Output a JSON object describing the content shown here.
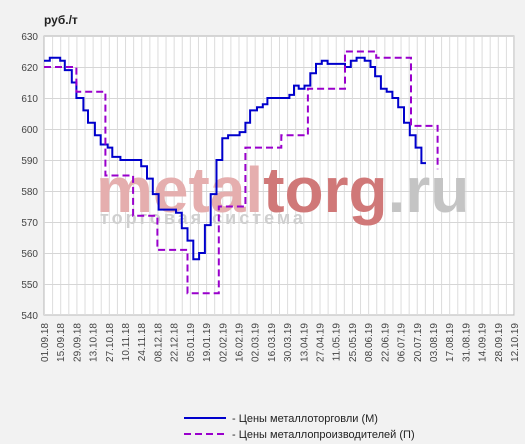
{
  "chart_data": {
    "type": "line",
    "ylabel": "руб./т",
    "ylim": [
      540,
      630
    ],
    "yticks": [
      540,
      550,
      560,
      570,
      580,
      590,
      600,
      610,
      620,
      630
    ],
    "x_labels": [
      "01.09.18",
      "15.09.18",
      "29.09.18",
      "13.10.18",
      "27.10.18",
      "10.11.18",
      "24.11.18",
      "08.12.18",
      "22.12.18",
      "05.01.19",
      "19.01.19",
      "02.02.19",
      "16.02.19",
      "02.03.19",
      "16.03.19",
      "30.03.19",
      "13.04.19",
      "27.04.19",
      "11.05.19",
      "25.05.19",
      "08.06.19",
      "22.06.19",
      "06.07.19",
      "20.07.19",
      "03.08.19",
      "17.08.19",
      "31.08.19",
      "14.09.19",
      "28.09.19",
      "12.10.19"
    ],
    "x_range_days": [
      0,
      406
    ],
    "grid": true,
    "legend_position": "bottom",
    "series": [
      {
        "name": "- Цены металлоторговли (М)",
        "color": "#0000cc",
        "style": "solid",
        "points": [
          [
            0,
            622
          ],
          [
            5,
            623
          ],
          [
            14,
            622
          ],
          [
            18,
            619
          ],
          [
            24,
            615
          ],
          [
            28,
            610
          ],
          [
            34,
            606
          ],
          [
            38,
            602
          ],
          [
            44,
            598
          ],
          [
            49,
            595
          ],
          [
            55,
            594
          ],
          [
            59,
            591
          ],
          [
            66,
            590
          ],
          [
            80,
            590
          ],
          [
            84,
            588
          ],
          [
            89,
            584
          ],
          [
            94,
            579
          ],
          [
            99,
            574
          ],
          [
            114,
            573
          ],
          [
            119,
            568
          ],
          [
            124,
            564
          ],
          [
            129,
            558
          ],
          [
            134,
            560
          ],
          [
            139,
            569
          ],
          [
            144,
            579
          ],
          [
            149,
            590
          ],
          [
            154,
            597
          ],
          [
            159,
            598
          ],
          [
            169,
            599
          ],
          [
            174,
            602
          ],
          [
            178,
            606
          ],
          [
            184,
            607
          ],
          [
            189,
            608
          ],
          [
            193,
            610
          ],
          [
            212,
            611
          ],
          [
            216,
            614
          ],
          [
            220,
            613
          ],
          [
            225,
            614
          ],
          [
            230,
            618
          ],
          [
            235,
            621
          ],
          [
            240,
            622
          ],
          [
            245,
            621
          ],
          [
            260,
            620
          ],
          [
            265,
            622
          ],
          [
            270,
            623
          ],
          [
            277,
            622
          ],
          [
            282,
            620
          ],
          [
            286,
            617
          ],
          [
            291,
            613
          ],
          [
            296,
            612
          ],
          [
            301,
            610
          ],
          [
            306,
            607
          ],
          [
            311,
            602
          ],
          [
            316,
            598
          ],
          [
            321,
            594
          ],
          [
            326,
            589
          ],
          [
            330,
            589
          ]
        ]
      },
      {
        "name": "- Цены металлопроизводителей (П)",
        "color": "#9900cc",
        "style": "dashed",
        "points": [
          [
            0,
            620
          ],
          [
            24,
            620
          ],
          [
            28,
            612
          ],
          [
            49,
            612
          ],
          [
            53,
            585
          ],
          [
            73,
            585
          ],
          [
            77,
            572
          ],
          [
            94,
            572
          ],
          [
            98,
            561
          ],
          [
            120,
            561
          ],
          [
            124,
            547
          ],
          [
            147,
            547
          ],
          [
            151,
            575
          ],
          [
            170,
            575
          ],
          [
            174,
            592
          ],
          [
            174,
            594
          ],
          [
            201,
            594
          ],
          [
            205,
            598
          ],
          [
            224,
            598
          ],
          [
            228,
            613
          ],
          [
            256,
            613
          ],
          [
            260,
            625
          ],
          [
            283,
            625
          ],
          [
            287,
            623
          ],
          [
            313,
            623
          ],
          [
            317,
            601
          ],
          [
            336,
            601
          ],
          [
            340,
            587
          ]
        ]
      }
    ]
  },
  "watermark": {
    "main": "metaltorg.ru",
    "sub": "торговая система"
  }
}
